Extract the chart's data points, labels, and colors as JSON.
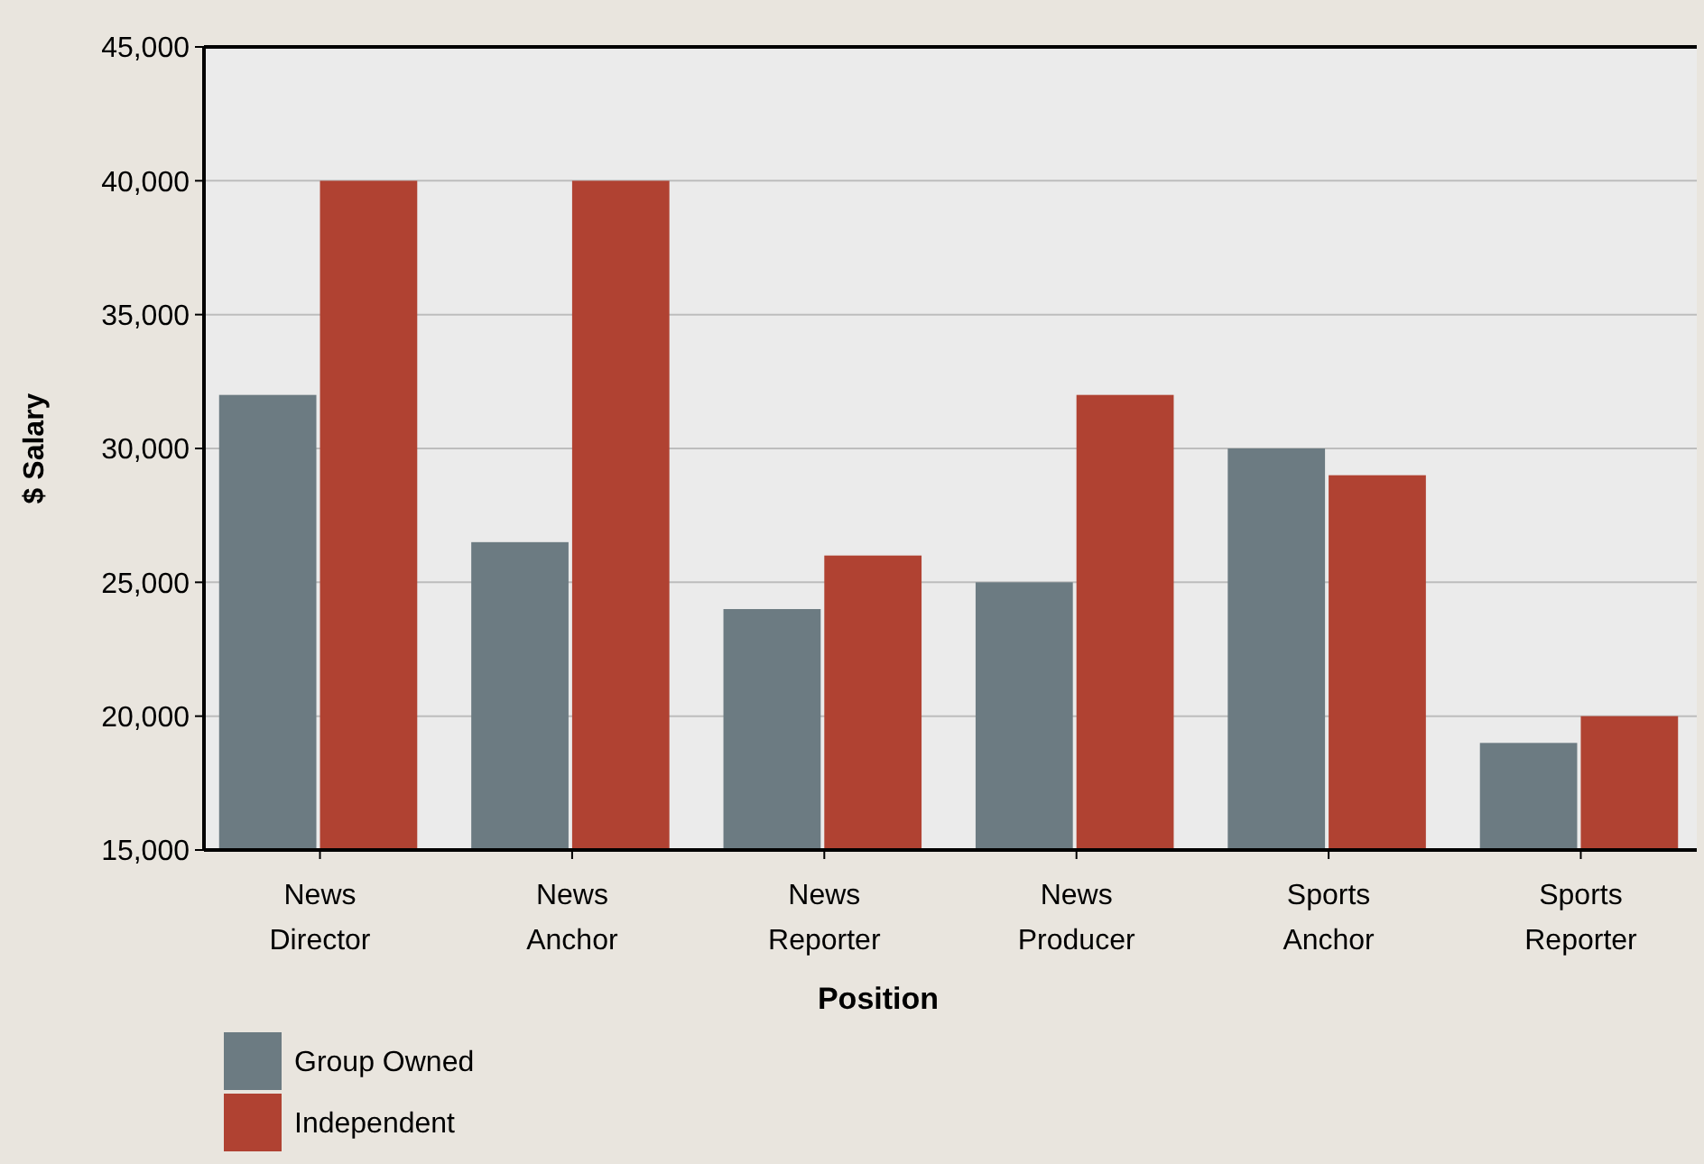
{
  "chart_data": {
    "type": "bar",
    "xlabel": "Position",
    "ylabel": "$ Salary",
    "categories": [
      "News\nDirector",
      "News\nAnchor",
      "News\nReporter",
      "News\nProducer",
      "Sports\nAnchor",
      "Sports\nReporter"
    ],
    "series": [
      {
        "name": "Group Owned",
        "color": "#6c7b82",
        "values": [
          32000,
          26500,
          24000,
          25000,
          30000,
          19000
        ]
      },
      {
        "name": "Independent",
        "color": "#b04232",
        "values": [
          40000,
          40000,
          26000,
          32000,
          29000,
          20000
        ]
      }
    ],
    "ylim": [
      15000,
      45000
    ],
    "yticks": [
      {
        "value": 15000,
        "label": "15,000"
      },
      {
        "value": 20000,
        "label": "20,000"
      },
      {
        "value": 25000,
        "label": "25,000"
      },
      {
        "value": 30000,
        "label": "30,000"
      },
      {
        "value": 35000,
        "label": "35,000"
      },
      {
        "value": 40000,
        "label": "40,000"
      },
      {
        "value": 45000,
        "label": "45,000"
      }
    ],
    "grid": "y",
    "legend": "bottom left"
  }
}
